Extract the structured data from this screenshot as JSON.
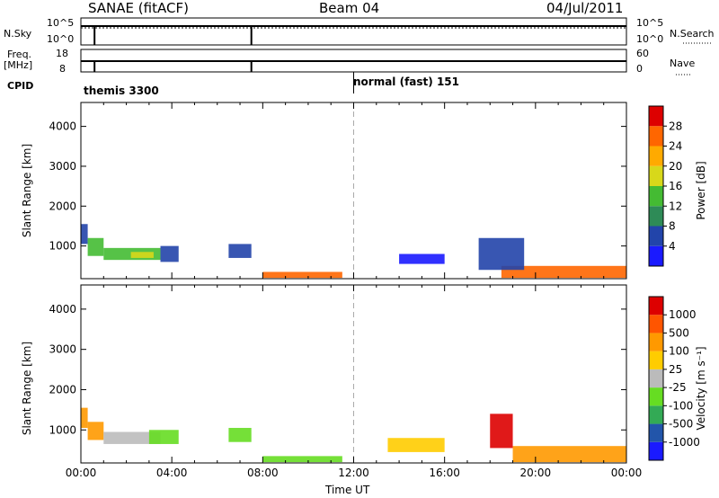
{
  "header": {
    "station": "SANAE (fitACF)",
    "beam": "Beam 04",
    "date": "04/Jul/2011"
  },
  "strip_labels": {
    "nsky": "N.Sky",
    "nsky_top": "10^5",
    "nsky_bottom": "10^0",
    "nsearch": "N.Search",
    "nsearch_top": "10^5",
    "nsearch_bottom": "10^0",
    "freq_line1": "Freq.",
    "freq_line2": "[MHz]",
    "freq_top": "18",
    "freq_bottom": "8",
    "nave": "Nave",
    "nave_top": "60",
    "nave_bottom": "0",
    "cpid": "CPID"
  },
  "modes": [
    {
      "label": "themis 3300",
      "start_hour": 0.0
    },
    {
      "label": "normal (fast) 151",
      "start_hour": 12.0
    }
  ],
  "colors": {
    "power": [
      "#1a1aff",
      "#2244aa",
      "#2e8b57",
      "#44bb33",
      "#d8d81a",
      "#ffaa00",
      "#ff6600",
      "#dd0000"
    ],
    "velocity": [
      "#1a1aff",
      "#2255aa",
      "#33aa55",
      "#66dd22",
      "#bbbbbb",
      "#ffcc00",
      "#ff9900",
      "#ff5500",
      "#dd0000"
    ]
  },
  "chart_data": [
    {
      "type": "heatmap",
      "name": "power-panel",
      "xlabel": "",
      "ylabel": "Slant Range [km]",
      "xlim": [
        0,
        24
      ],
      "ylim": [
        180,
        4600
      ],
      "yticks": [
        "1000",
        "2000",
        "3000",
        "4000"
      ],
      "colorbar": {
        "label": "Power [dB]",
        "levels": [
          "4",
          "8",
          "12",
          "16",
          "20",
          "24",
          "28"
        ]
      },
      "regions": [
        {
          "x0": 0.0,
          "x1": 0.3,
          "y0": 1050,
          "y1": 1550,
          "level": 1
        },
        {
          "x0": 0.3,
          "x1": 1.0,
          "y0": 750,
          "y1": 1200,
          "level": 3
        },
        {
          "x0": 1.0,
          "x1": 3.5,
          "y0": 650,
          "y1": 950,
          "level": 3
        },
        {
          "x0": 2.2,
          "x1": 3.2,
          "y0": 700,
          "y1": 850,
          "level": 4
        },
        {
          "x0": 3.5,
          "x1": 4.3,
          "y0": 600,
          "y1": 1000,
          "level": 1
        },
        {
          "x0": 6.5,
          "x1": 7.5,
          "y0": 700,
          "y1": 1050,
          "level": 1
        },
        {
          "x0": 8.0,
          "x1": 11.5,
          "y0": 200,
          "y1": 350,
          "level": 6
        },
        {
          "x0": 14.0,
          "x1": 16.0,
          "y0": 550,
          "y1": 800,
          "level": 0
        },
        {
          "x0": 18.5,
          "x1": 24.0,
          "y0": 200,
          "y1": 500,
          "level": 6
        },
        {
          "x0": 17.5,
          "x1": 19.5,
          "y0": 400,
          "y1": 1200,
          "level": 1
        }
      ]
    },
    {
      "type": "heatmap",
      "name": "velocity-panel",
      "xlabel": "Time UT",
      "ylabel": "Slant Range [km]",
      "xlim": [
        0,
        24
      ],
      "ylim": [
        180,
        4600
      ],
      "xticks": [
        "00:00",
        "04:00",
        "08:00",
        "12:00",
        "16:00",
        "20:00",
        "00:00"
      ],
      "yticks": [
        "1000",
        "2000",
        "3000",
        "4000"
      ],
      "colorbar": {
        "label": "Velocity [m s⁻¹]",
        "levels": [
          "1000",
          "500",
          "100",
          "25",
          "-25",
          "-100",
          "-500",
          "-1000"
        ]
      },
      "regions": [
        {
          "x0": 0.0,
          "x1": 0.3,
          "y0": 1050,
          "y1": 1550,
          "level": 6
        },
        {
          "x0": 0.3,
          "x1": 1.0,
          "y0": 750,
          "y1": 1200,
          "level": 6
        },
        {
          "x0": 1.0,
          "x1": 3.5,
          "y0": 650,
          "y1": 950,
          "level": 4
        },
        {
          "x0": 3.0,
          "x1": 4.3,
          "y0": 650,
          "y1": 1000,
          "level": 3
        },
        {
          "x0": 6.5,
          "x1": 7.5,
          "y0": 700,
          "y1": 1050,
          "level": 3
        },
        {
          "x0": 8.0,
          "x1": 11.5,
          "y0": 200,
          "y1": 350,
          "level": 3
        },
        {
          "x0": 13.5,
          "x1": 16.0,
          "y0": 450,
          "y1": 800,
          "level": 5
        },
        {
          "x0": 18.0,
          "x1": 19.0,
          "y0": 550,
          "y1": 1400,
          "level": 8
        },
        {
          "x0": 19.0,
          "x1": 24.0,
          "y0": 200,
          "y1": 600,
          "level": 6
        }
      ]
    }
  ]
}
